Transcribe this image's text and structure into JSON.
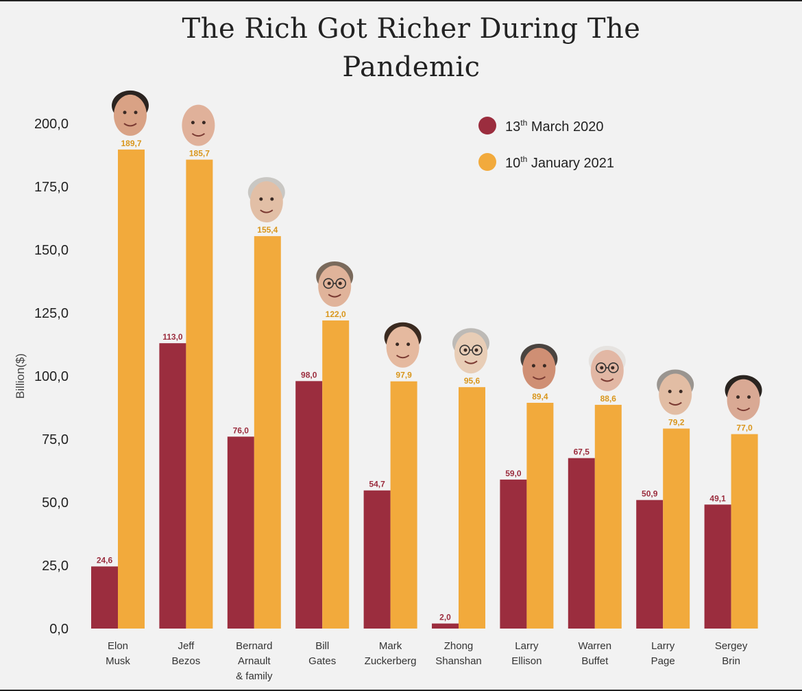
{
  "title": "The Rich Got Richer During The Pandemic",
  "chart_data": {
    "type": "bar",
    "title": "The Rich Got Richer During The Pandemic",
    "xlabel": "",
    "ylabel": "Billion($)",
    "ylim": [
      0,
      200
    ],
    "yticks": [
      "0,0",
      "25,0",
      "50,0",
      "75,0",
      "100,0",
      "125,0",
      "150,0",
      "175,0",
      "200,0"
    ],
    "categories": [
      [
        "Elon",
        "Musk"
      ],
      [
        "Jeff",
        "Bezos"
      ],
      [
        "Bernard",
        "Arnault",
        "& family"
      ],
      [
        "Bill",
        "Gates"
      ],
      [
        "Mark",
        "Zuckerberg"
      ],
      [
        "Zhong",
        "Shanshan"
      ],
      [
        "Larry",
        "Ellison"
      ],
      [
        "Warren",
        "Buffet"
      ],
      [
        "Larry",
        "Page"
      ],
      [
        "Sergey",
        "Brin"
      ]
    ],
    "series": [
      {
        "name": "13th March 2020",
        "legend_main": "13",
        "legend_sup": "th",
        "legend_rest": " March 2020",
        "color": "#9b2d3e",
        "label_color": "#9b2d3e",
        "values": [
          24.6,
          113.0,
          76.0,
          98.0,
          54.7,
          2.0,
          59.0,
          67.5,
          50.9,
          49.1
        ],
        "labels": [
          "24,6",
          "113,0",
          "76,0",
          "98,0",
          "54,7",
          "2,0",
          "59,0",
          "67,5",
          "50,9",
          "49,1"
        ]
      },
      {
        "name": "10th January 2021",
        "legend_main": "10",
        "legend_sup": "th",
        "legend_rest": " January 2021",
        "color": "#f2aa3c",
        "label_color": "#d9961c",
        "values": [
          189.7,
          185.7,
          155.4,
          122.0,
          97.9,
          95.6,
          89.4,
          88.6,
          79.2,
          77.0
        ],
        "labels": [
          "189,7",
          "185,7",
          "155,4",
          "122,0",
          "97,9",
          "95,6",
          "89,4",
          "88,6",
          "79,2",
          "77,0"
        ]
      }
    ],
    "legend_position": "top-right",
    "grid": false,
    "portrait_style": [
      {
        "hair": "#2b2420",
        "skin": "#d9a285",
        "glasses": false
      },
      {
        "hair": null,
        "skin": "#e0b19a",
        "glasses": false
      },
      {
        "hair": "#c9c7c3",
        "skin": "#e2bfa6",
        "glasses": false
      },
      {
        "hair": "#7a6a5c",
        "skin": "#e0b39a",
        "glasses": true
      },
      {
        "hair": "#3a2a20",
        "skin": "#e5b99f",
        "glasses": false
      },
      {
        "hair": "#bdbab6",
        "skin": "#e8cdb6",
        "glasses": true
      },
      {
        "hair": "#4a4440",
        "skin": "#cf8f74",
        "glasses": false
      },
      {
        "hair": "#e6e3e0",
        "skin": "#e2b7a4",
        "glasses": true
      },
      {
        "hair": "#9a9590",
        "skin": "#e2bda4",
        "glasses": false
      },
      {
        "hair": "#2a2420",
        "skin": "#d9a994",
        "glasses": false
      }
    ]
  }
}
